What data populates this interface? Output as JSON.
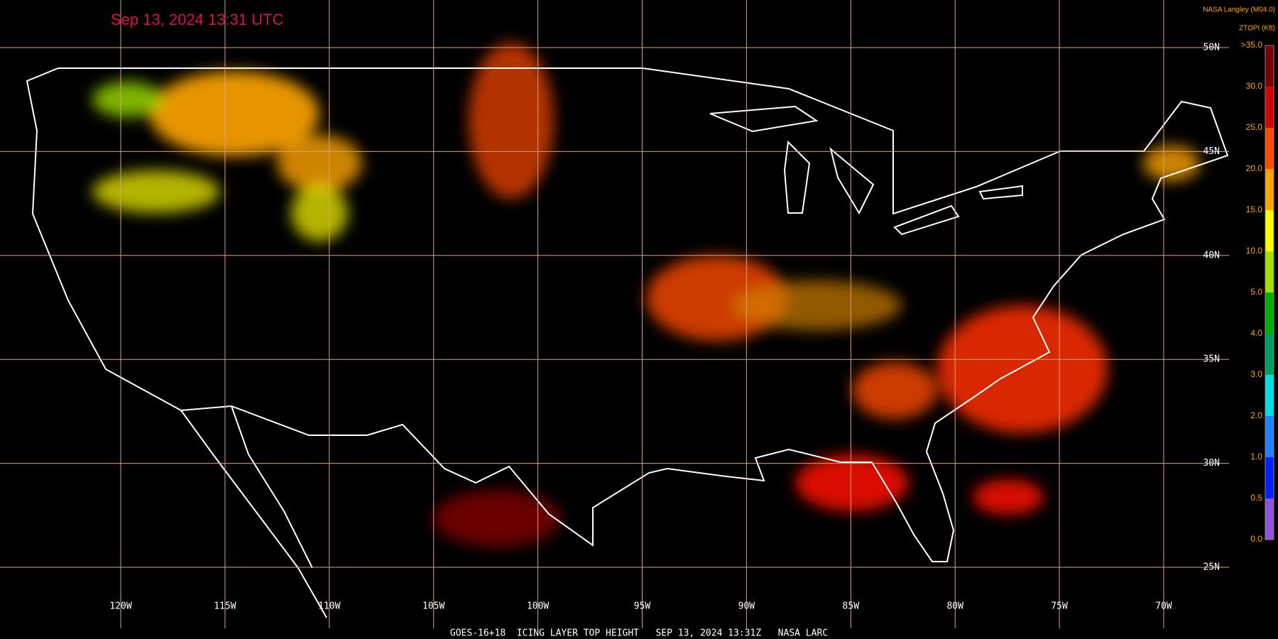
{
  "timestamp": "Sep 13, 2024 13:31 UTC",
  "source": "NASA Langley (M04.0)",
  "legend": {
    "title": "ZTOPI (Kft)",
    "labels": [
      ">35.0",
      "30.0",
      "25.0",
      "20.0",
      "15.0",
      "10.0",
      "5.0",
      "4.0",
      "3.0",
      "2.0",
      "1.0",
      "0.5",
      "0.0"
    ],
    "colors": [
      "#7a0000",
      "#d80000",
      "#ff4a00",
      "#ffa500",
      "#ffff00",
      "#9fe000",
      "#00b000",
      "#00a060",
      "#00e0e0",
      "#2080ff",
      "#0020ff",
      "#9050e0"
    ]
  },
  "latitudes": [
    "50N",
    "45N",
    "40N",
    "35N",
    "30N",
    "25N"
  ],
  "longitudes": [
    "120W",
    "115W",
    "110W",
    "105W",
    "100W",
    "95W",
    "90W",
    "85W",
    "80W",
    "75W",
    "70W"
  ],
  "footer": "GOES-16+18  ICING LAYER TOP HEIGHT   SEP 13, 2024 13:31Z   NASA LARC"
}
